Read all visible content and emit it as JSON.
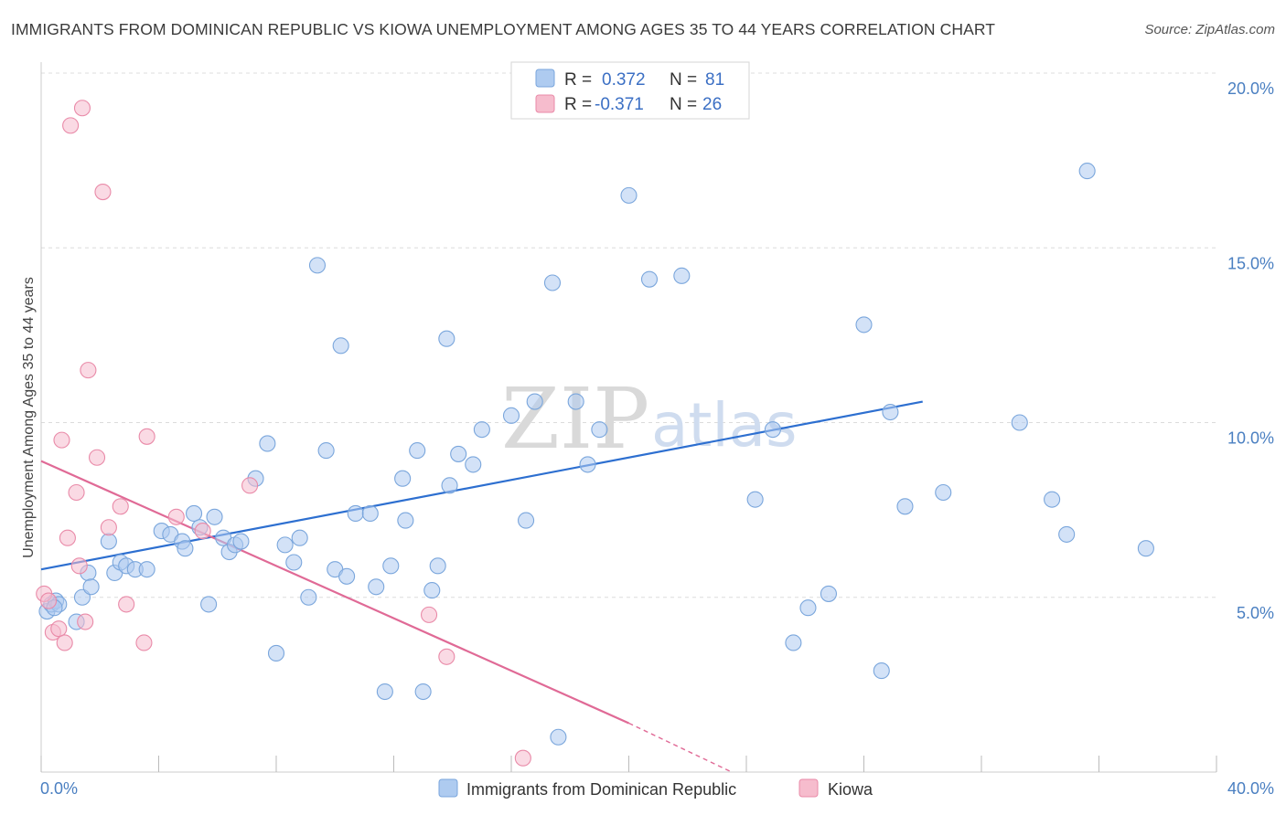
{
  "title": "IMMIGRANTS FROM DOMINICAN REPUBLIC VS KIOWA UNEMPLOYMENT AMONG AGES 35 TO 44 YEARS CORRELATION CHART",
  "source": "Source: ZipAtlas.com",
  "watermark": {
    "zip": "ZIP",
    "atlas": "atlas"
  },
  "colors": {
    "blue_fill": "#aecbf0",
    "blue_stroke": "#7aa6dc",
    "blue_line": "#2d6fd0",
    "pink_fill": "#f6bccd",
    "pink_stroke": "#e98aa8",
    "pink_line": "#e06a96",
    "grid": "#dcdcdc",
    "tick_text": "#4a7fc1"
  },
  "legend": {
    "rows": [
      {
        "r_label": "R =",
        "r_value": "0.372",
        "n_label": "N =",
        "n_value": "81"
      },
      {
        "r_label": "R =",
        "r_value": "-0.371",
        "n_label": "N =",
        "n_value": "26"
      }
    ]
  },
  "bottom_legend": [
    "Immigrants from Dominican Republic",
    "Kiowa"
  ],
  "chart_data": {
    "type": "scatter",
    "title": "IMMIGRANTS FROM DOMINICAN REPUBLIC VS KIOWA UNEMPLOYMENT AMONG AGES 35 TO 44 YEARS CORRELATION CHART",
    "xlabel": "",
    "ylabel": "Unemployment Among Ages 35 to 44 years",
    "xlim": [
      0,
      40
    ],
    "ylim": [
      0,
      20
    ],
    "x_tick_labels": [
      "0.0%",
      "40.0%"
    ],
    "y_ticks": [
      5,
      10,
      15,
      20
    ],
    "y_tick_labels": [
      "5.0%",
      "10.0%",
      "15.0%",
      "20.0%"
    ],
    "grid": true,
    "legend_position": "top-center",
    "series": [
      {
        "name": "Immigrants from Dominican Republic",
        "r": 0.372,
        "n": 81,
        "trend": {
          "x": [
            0,
            30
          ],
          "y": [
            5.8,
            10.6
          ]
        },
        "points": [
          [
            0.2,
            4.6
          ],
          [
            0.35,
            4.8
          ],
          [
            0.5,
            4.9
          ],
          [
            0.6,
            4.8
          ],
          [
            1.2,
            4.3
          ],
          [
            1.4,
            5.0
          ],
          [
            1.6,
            5.7
          ],
          [
            1.7,
            5.3
          ],
          [
            2.3,
            6.6
          ],
          [
            2.5,
            5.7
          ],
          [
            2.7,
            6.0
          ],
          [
            2.9,
            5.9
          ],
          [
            3.2,
            5.8
          ],
          [
            3.6,
            5.8
          ],
          [
            4.1,
            6.9
          ],
          [
            4.4,
            6.8
          ],
          [
            4.8,
            6.6
          ],
          [
            4.9,
            6.4
          ],
          [
            5.2,
            7.4
          ],
          [
            5.4,
            7.0
          ],
          [
            5.7,
            4.8
          ],
          [
            5.9,
            7.3
          ],
          [
            6.2,
            6.7
          ],
          [
            6.4,
            6.3
          ],
          [
            6.6,
            6.5
          ],
          [
            6.8,
            6.6
          ],
          [
            7.3,
            8.4
          ],
          [
            7.7,
            9.4
          ],
          [
            8.0,
            3.4
          ],
          [
            8.3,
            6.5
          ],
          [
            8.6,
            6.0
          ],
          [
            8.8,
            6.7
          ],
          [
            9.1,
            5.0
          ],
          [
            9.4,
            14.5
          ],
          [
            9.7,
            9.2
          ],
          [
            10.0,
            5.8
          ],
          [
            10.2,
            12.2
          ],
          [
            10.4,
            5.6
          ],
          [
            10.7,
            7.4
          ],
          [
            11.2,
            7.4
          ],
          [
            11.4,
            5.3
          ],
          [
            11.7,
            2.3
          ],
          [
            11.9,
            5.9
          ],
          [
            12.3,
            8.4
          ],
          [
            12.4,
            7.2
          ],
          [
            12.8,
            9.2
          ],
          [
            13.0,
            2.3
          ],
          [
            13.3,
            5.2
          ],
          [
            13.5,
            5.9
          ],
          [
            13.8,
            12.4
          ],
          [
            13.9,
            8.2
          ],
          [
            14.2,
            9.1
          ],
          [
            14.7,
            8.8
          ],
          [
            15.0,
            9.8
          ],
          [
            16.0,
            10.2
          ],
          [
            16.5,
            7.2
          ],
          [
            16.8,
            10.6
          ],
          [
            17.4,
            14.0
          ],
          [
            17.6,
            1.0
          ],
          [
            18.2,
            10.6
          ],
          [
            18.6,
            8.8
          ],
          [
            19.0,
            9.8
          ],
          [
            20.0,
            16.5
          ],
          [
            20.7,
            14.1
          ],
          [
            21.8,
            14.2
          ],
          [
            24.3,
            7.8
          ],
          [
            24.9,
            9.8
          ],
          [
            25.6,
            3.7
          ],
          [
            26.1,
            4.7
          ],
          [
            26.8,
            5.1
          ],
          [
            28.0,
            12.8
          ],
          [
            28.6,
            2.9
          ],
          [
            28.9,
            10.3
          ],
          [
            29.4,
            7.6
          ],
          [
            30.7,
            8.0
          ],
          [
            33.3,
            10.0
          ],
          [
            34.4,
            7.8
          ],
          [
            34.9,
            6.8
          ],
          [
            35.6,
            17.2
          ],
          [
            37.6,
            6.4
          ],
          [
            0.45,
            4.7
          ]
        ]
      },
      {
        "name": "Kiowa",
        "r": -0.371,
        "n": 26,
        "trend": {
          "x": [
            0,
            20
          ],
          "y": [
            8.9,
            1.4
          ]
        },
        "trend_dashed": {
          "x": [
            20,
            23.5
          ],
          "y": [
            1.4,
            0.0
          ]
        },
        "points": [
          [
            0.1,
            5.1
          ],
          [
            0.25,
            4.9
          ],
          [
            0.4,
            4.0
          ],
          [
            0.6,
            4.1
          ],
          [
            0.7,
            9.5
          ],
          [
            0.8,
            3.7
          ],
          [
            0.9,
            6.7
          ],
          [
            1.0,
            18.5
          ],
          [
            1.2,
            8.0
          ],
          [
            1.3,
            5.9
          ],
          [
            1.4,
            19.0
          ],
          [
            1.5,
            4.3
          ],
          [
            1.6,
            11.5
          ],
          [
            1.9,
            9.0
          ],
          [
            2.1,
            16.6
          ],
          [
            2.3,
            7.0
          ],
          [
            2.7,
            7.6
          ],
          [
            2.9,
            4.8
          ],
          [
            3.5,
            3.7
          ],
          [
            3.6,
            9.6
          ],
          [
            4.6,
            7.3
          ],
          [
            5.5,
            6.9
          ],
          [
            7.1,
            8.2
          ],
          [
            13.2,
            4.5
          ],
          [
            13.8,
            3.3
          ],
          [
            16.4,
            0.4
          ]
        ]
      }
    ]
  }
}
